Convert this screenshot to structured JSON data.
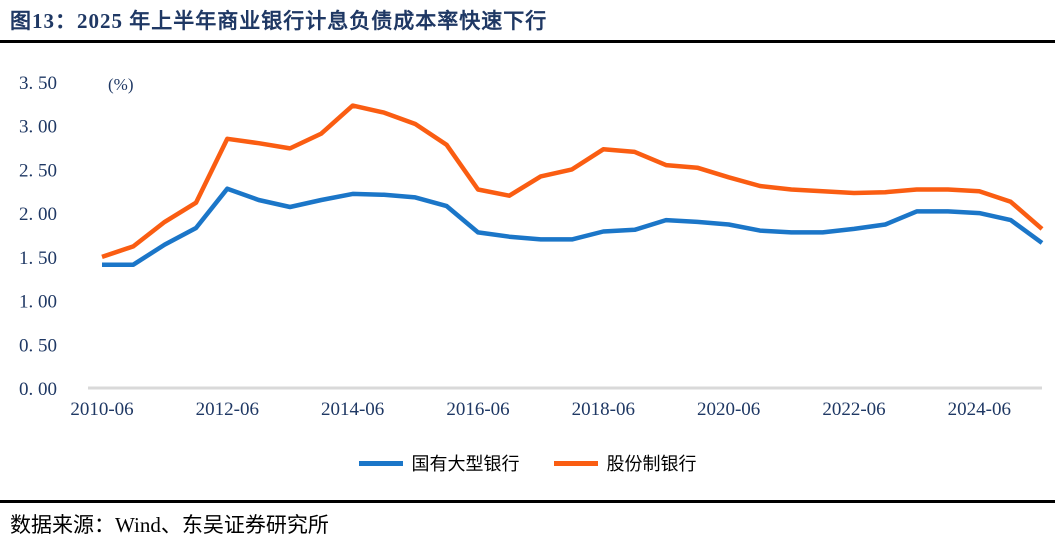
{
  "header": {
    "title": "图13：2025 年上半年商业银行计息负债成本率快速下行"
  },
  "footer": {
    "source": "数据来源：Wind、东吴证券研究所"
  },
  "colors": {
    "title_navy": "#1F3864",
    "axis_label": "#1F3864",
    "axis_line": "#D9D9D9",
    "series_blue": "#1B76C8",
    "series_orange": "#FA5D12",
    "divider_black": "#000000"
  },
  "chart_data": {
    "type": "line",
    "unit_label": "(%)",
    "grid": false,
    "legend_position": "bottom",
    "ylim": [
      0,
      3.5
    ],
    "y_tick_labels": [
      "0. 00",
      "0. 50",
      "1. 00",
      "1. 50",
      "2. 00",
      "2. 50",
      "3. 00",
      "3. 50"
    ],
    "x": [
      "2010-06",
      "2010-12",
      "2011-06",
      "2011-12",
      "2012-06",
      "2012-12",
      "2013-06",
      "2013-12",
      "2014-06",
      "2014-12",
      "2015-06",
      "2015-12",
      "2016-06",
      "2016-12",
      "2017-06",
      "2017-12",
      "2018-06",
      "2018-12",
      "2019-06",
      "2019-12",
      "2020-06",
      "2020-12",
      "2021-06",
      "2021-12",
      "2022-06",
      "2022-12",
      "2023-06",
      "2023-12",
      "2024-06",
      "2024-12",
      "2025-06"
    ],
    "x_tick_labels": [
      "2010-06",
      "2012-06",
      "2014-06",
      "2016-06",
      "2018-06",
      "2020-06",
      "2022-06",
      "2024-06"
    ],
    "x_tick_step": 4,
    "series": [
      {
        "name": "国有大型银行",
        "color": "#1B76C8",
        "values": [
          1.41,
          1.41,
          1.64,
          1.83,
          2.28,
          2.15,
          2.07,
          2.15,
          2.22,
          2.21,
          2.18,
          2.08,
          1.78,
          1.73,
          1.7,
          1.7,
          1.79,
          1.81,
          1.92,
          1.9,
          1.87,
          1.8,
          1.78,
          1.78,
          1.82,
          1.87,
          2.02,
          2.02,
          2.0,
          1.92,
          1.66
        ]
      },
      {
        "name": "股份制银行",
        "color": "#FA5D12",
        "values": [
          1.5,
          1.62,
          1.9,
          2.12,
          2.85,
          2.8,
          2.74,
          2.91,
          3.23,
          3.15,
          3.02,
          2.78,
          2.27,
          2.2,
          2.42,
          2.5,
          2.73,
          2.7,
          2.55,
          2.52,
          2.41,
          2.31,
          2.27,
          2.25,
          2.23,
          2.24,
          2.27,
          2.27,
          2.25,
          2.13,
          1.82
        ]
      }
    ]
  }
}
